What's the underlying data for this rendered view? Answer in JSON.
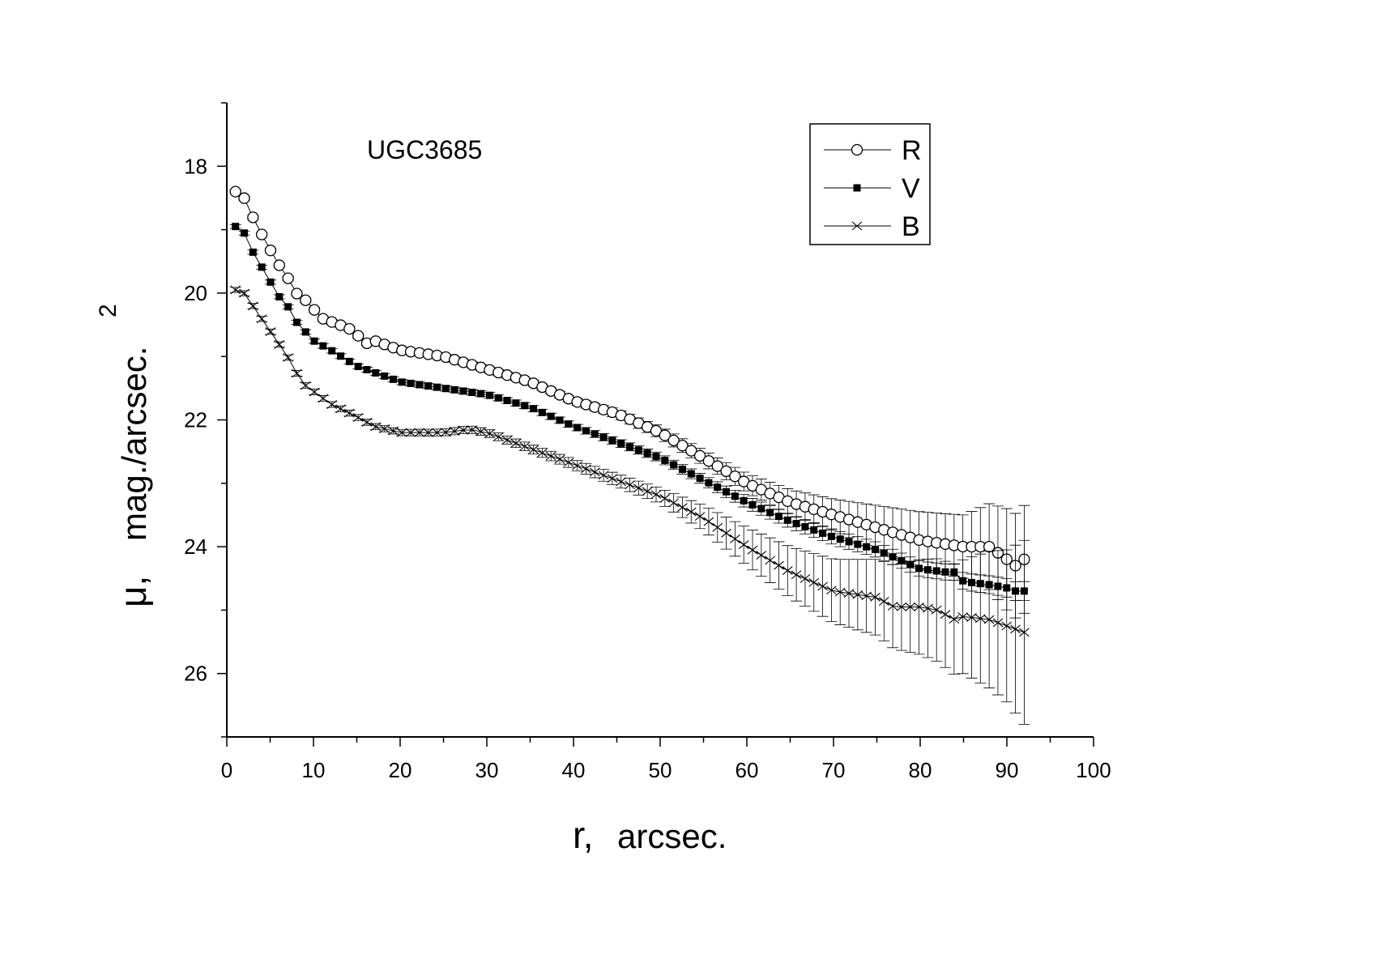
{
  "chart_data": {
    "type": "line",
    "annotation": "UGC3685",
    "xlabel_symbol": "r,",
    "xlabel_unit": "arcsec.",
    "ylabel_symbol": "μ,",
    "ylabel_unit": "mag./arcsec.",
    "ylabel_superscript": "2",
    "xlim": [
      0,
      100
    ],
    "ylim": [
      27,
      17
    ],
    "y_inverted": true,
    "x_ticks": [
      "0",
      "10",
      "20",
      "30",
      "40",
      "50",
      "60",
      "70",
      "80",
      "90",
      "100"
    ],
    "y_ticks": [
      "18",
      "20",
      "22",
      "24",
      "26"
    ],
    "grid": false,
    "legend_position": "top-right",
    "series": [
      {
        "name": "R",
        "marker": "open-circle",
        "anchors": [
          [
            1,
            18.4
          ],
          [
            2,
            18.5
          ],
          [
            3,
            18.8
          ],
          [
            4.5,
            19.2
          ],
          [
            6,
            19.55
          ],
          [
            7,
            19.75
          ],
          [
            8,
            20.0
          ],
          [
            9,
            20.1
          ],
          [
            10,
            20.25
          ],
          [
            11,
            20.4
          ],
          [
            12,
            20.45
          ],
          [
            14,
            20.55
          ],
          [
            15,
            20.65
          ],
          [
            16,
            20.8
          ],
          [
            17,
            20.75
          ],
          [
            20,
            20.9
          ],
          [
            25,
            21.0
          ],
          [
            30,
            21.2
          ],
          [
            35,
            21.4
          ],
          [
            40,
            21.7
          ],
          [
            45,
            21.9
          ],
          [
            50,
            22.2
          ],
          [
            55,
            22.6
          ],
          [
            60,
            23.0
          ],
          [
            65,
            23.3
          ],
          [
            70,
            23.5
          ],
          [
            75,
            23.7
          ],
          [
            80,
            23.9
          ],
          [
            85,
            24.0
          ],
          [
            88,
            24.0
          ],
          [
            90,
            24.2
          ],
          [
            91,
            24.3
          ],
          [
            92,
            24.2
          ]
        ],
        "err_anchors": [
          [
            1,
            0.03
          ],
          [
            20,
            0.04
          ],
          [
            40,
            0.05
          ],
          [
            45,
            0.07
          ],
          [
            55,
            0.12
          ],
          [
            60,
            0.15
          ],
          [
            65,
            0.2
          ],
          [
            70,
            0.25
          ],
          [
            75,
            0.35
          ],
          [
            80,
            0.45
          ],
          [
            85,
            0.5
          ],
          [
            90,
            0.8
          ],
          [
            92,
            0.85
          ]
        ]
      },
      {
        "name": "V",
        "marker": "filled-square",
        "anchors": [
          [
            1,
            18.95
          ],
          [
            2,
            19.05
          ],
          [
            3,
            19.35
          ],
          [
            4.5,
            19.7
          ],
          [
            6,
            20.05
          ],
          [
            7,
            20.2
          ],
          [
            8,
            20.45
          ],
          [
            9,
            20.6
          ],
          [
            10,
            20.75
          ],
          [
            12,
            20.9
          ],
          [
            15,
            21.15
          ],
          [
            20,
            21.4
          ],
          [
            25,
            21.5
          ],
          [
            30,
            21.6
          ],
          [
            35,
            21.8
          ],
          [
            40,
            22.1
          ],
          [
            45,
            22.35
          ],
          [
            50,
            22.6
          ],
          [
            55,
            22.95
          ],
          [
            60,
            23.3
          ],
          [
            65,
            23.6
          ],
          [
            70,
            23.85
          ],
          [
            75,
            24.05
          ],
          [
            80,
            24.35
          ],
          [
            83,
            24.4
          ],
          [
            84,
            24.4
          ],
          [
            85,
            24.55
          ],
          [
            88,
            24.6
          ],
          [
            90,
            24.65
          ],
          [
            91,
            24.7
          ],
          [
            92,
            24.7
          ]
        ],
        "err_anchors": [
          [
            1,
            0.03
          ],
          [
            20,
            0.04
          ],
          [
            40,
            0.05
          ],
          [
            45,
            0.06
          ],
          [
            55,
            0.08
          ],
          [
            60,
            0.1
          ],
          [
            70,
            0.12
          ],
          [
            80,
            0.12
          ],
          [
            92,
            0.15
          ]
        ]
      },
      {
        "name": "B",
        "marker": "cross",
        "anchors": [
          [
            1,
            19.95
          ],
          [
            2,
            20.0
          ],
          [
            3,
            20.2
          ],
          [
            4.5,
            20.5
          ],
          [
            6,
            20.8
          ],
          [
            7,
            21.0
          ],
          [
            8,
            21.25
          ],
          [
            9,
            21.45
          ],
          [
            10,
            21.55
          ],
          [
            12,
            21.75
          ],
          [
            15,
            21.95
          ],
          [
            17,
            22.1
          ],
          [
            20,
            22.2
          ],
          [
            25,
            22.2
          ],
          [
            28,
            22.15
          ],
          [
            30,
            22.2
          ],
          [
            35,
            22.45
          ],
          [
            40,
            22.7
          ],
          [
            45,
            22.95
          ],
          [
            50,
            23.2
          ],
          [
            55,
            23.55
          ],
          [
            60,
            24.0
          ],
          [
            65,
            24.4
          ],
          [
            70,
            24.7
          ],
          [
            75,
            24.8
          ],
          [
            77,
            24.95
          ],
          [
            80,
            24.95
          ],
          [
            82,
            25.0
          ],
          [
            84,
            25.15
          ],
          [
            85,
            25.1
          ],
          [
            88,
            25.15
          ],
          [
            90,
            25.25
          ],
          [
            92,
            25.35
          ]
        ],
        "err_anchors": [
          [
            1,
            0.04
          ],
          [
            20,
            0.05
          ],
          [
            30,
            0.06
          ],
          [
            40,
            0.08
          ],
          [
            50,
            0.12
          ],
          [
            55,
            0.2
          ],
          [
            60,
            0.3
          ],
          [
            65,
            0.4
          ],
          [
            70,
            0.5
          ],
          [
            75,
            0.6
          ],
          [
            80,
            0.75
          ],
          [
            85,
            0.9
          ],
          [
            90,
            1.2
          ],
          [
            92,
            1.45
          ]
        ]
      }
    ]
  }
}
